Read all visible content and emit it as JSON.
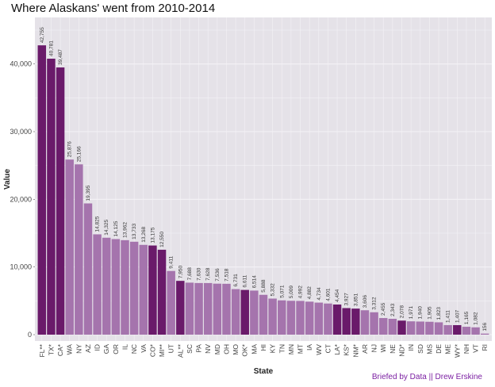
{
  "chart_data": {
    "type": "bar",
    "title": "Where Alaskans' went from 2010-2014",
    "xlabel": "State",
    "ylabel": "Value",
    "caption": "Briefed by Data || Drew Erskine",
    "ylim": [
      0,
      45000
    ],
    "y_ticks": [
      0,
      10000,
      20000,
      30000,
      40000
    ],
    "y_tick_labels": [
      "0",
      "10,000",
      "20,000",
      "30,000",
      "40,000"
    ],
    "grid": true,
    "colors": {
      "highlight": "#6a1a6a",
      "normal": "#a574ad",
      "panel": "#e5e2e8",
      "grid": "#f4f2f6"
    },
    "categories": [
      "FL**",
      "TX*",
      "CA*",
      "WA",
      "NY",
      "AZ",
      "ID",
      "GA",
      "OR",
      "IL",
      "NC",
      "VA",
      "CO*",
      "MI**",
      "UT",
      "AL**",
      "SC",
      "PA",
      "NV",
      "MD",
      "OH",
      "MO",
      "OK*",
      "MA",
      "HI",
      "KY",
      "TN",
      "MN",
      "MT",
      "IA",
      "WV",
      "CT",
      "LA*",
      "KS*",
      "NM*",
      "AR",
      "NJ",
      "WI",
      "NE",
      "ND*",
      "IN",
      "SD",
      "MS",
      "DE",
      "ME",
      "WY*",
      "NH",
      "VT",
      "RI"
    ],
    "values": [
      42755,
      40781,
      39487,
      25876,
      25166,
      19395,
      14825,
      14325,
      14125,
      13962,
      13733,
      13268,
      13175,
      12550,
      9411,
      7950,
      7688,
      7630,
      7628,
      7536,
      7518,
      6731,
      6611,
      6514,
      5888,
      5332,
      5071,
      5009,
      4992,
      4882,
      4734,
      4601,
      4454,
      3927,
      3851,
      3606,
      3312,
      2455,
      2343,
      2078,
      1971,
      1940,
      1905,
      1823,
      1411,
      1407,
      1165,
      1082,
      156
    ],
    "value_labels": [
      "42,755",
      "40,781",
      "39,487",
      "25,876",
      "25,166",
      "19,395",
      "14,825",
      "14,325",
      "14,125",
      "13,962",
      "13,733",
      "13,268",
      "13,175",
      "12,550",
      "9,411",
      "7,950",
      "7,688",
      "7,630",
      "7,628",
      "7,536",
      "7,518",
      "6,731",
      "6,611",
      "6,514",
      "5,888",
      "5,332",
      "5,071",
      "5,009",
      "4,992",
      "4,882",
      "4,734",
      "4,601",
      "4,454",
      "3,927",
      "3,851",
      "3,606",
      "3,312",
      "2,455",
      "2,343",
      "2,078",
      "1,971",
      "1,940",
      "1,905",
      "1,823",
      "1,411",
      "1,407",
      "1,165",
      "1,082",
      "156"
    ],
    "highlighted": [
      true,
      true,
      true,
      false,
      false,
      false,
      false,
      false,
      false,
      false,
      false,
      false,
      true,
      true,
      false,
      true,
      false,
      false,
      false,
      false,
      false,
      false,
      true,
      false,
      false,
      false,
      false,
      false,
      false,
      false,
      false,
      false,
      true,
      true,
      true,
      false,
      false,
      false,
      false,
      true,
      false,
      false,
      false,
      false,
      false,
      true,
      false,
      false,
      false
    ]
  }
}
